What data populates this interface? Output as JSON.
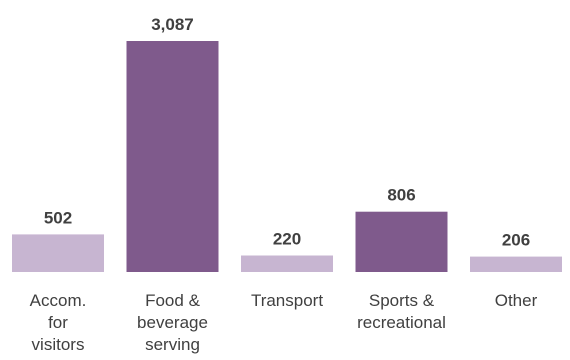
{
  "chart_data": {
    "type": "bar",
    "categories": [
      [
        "Accom.",
        "for",
        "visitors"
      ],
      [
        "Food &",
        "beverage",
        "serving"
      ],
      [
        "Transport"
      ],
      [
        "Sports &",
        "recreational"
      ],
      [
        "Other"
      ]
    ],
    "values": [
      502,
      3087,
      220,
      806,
      206
    ],
    "value_labels": [
      "502",
      "3,087",
      "220",
      "806",
      "206"
    ],
    "bar_colors": [
      "#c7b5d1",
      "#7f5a8c",
      "#c7b5d1",
      "#7f5a8c",
      "#c7b5d1"
    ],
    "title": "",
    "xlabel": "",
    "ylabel": "",
    "ylim": [
      0,
      3087
    ],
    "grid": false,
    "legend": "none"
  }
}
